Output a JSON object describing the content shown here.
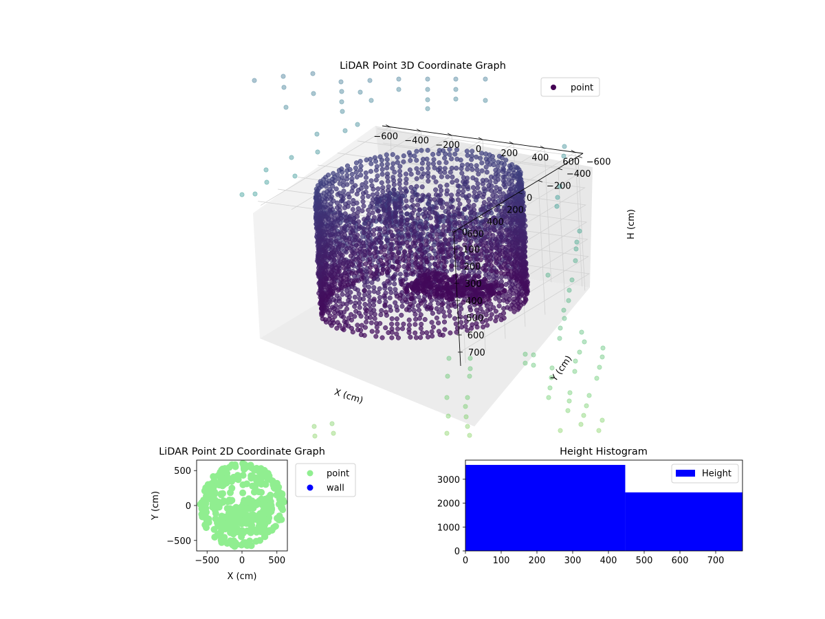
{
  "chart_data": [
    {
      "type": "scatter",
      "projection": "3d",
      "title": "LiDAR Point 3D Coordinate Graph",
      "xlabel": "X (cm)",
      "ylabel": "Y (cm)",
      "zlabel": "H (cm)",
      "xticks": [
        "−600",
        "−400",
        "−200",
        "0",
        "200",
        "400",
        "600"
      ],
      "yticks": [
        "600",
        "400",
        "200",
        "0",
        "−200",
        "−400",
        "−600"
      ],
      "zticks": [
        "0",
        "100",
        "200",
        "300",
        "400",
        "500",
        "600",
        "700"
      ],
      "xlim": [
        -650,
        650
      ],
      "ylim": [
        -650,
        650
      ],
      "zlim": [
        0,
        780
      ],
      "z_axis_inverted": true,
      "grid": true,
      "legend": {
        "position": "upper-right",
        "entries": [
          "point"
        ]
      },
      "colormap": "viridis",
      "series": [
        {
          "name": "point",
          "color": "#440154",
          "description_values": {
            "ring_radius_cm": 560,
            "height_range_cm": [
              0,
              750
            ]
          }
        }
      ]
    },
    {
      "type": "scatter",
      "title": "LiDAR Point 2D Coordinate Graph",
      "xlabel": "X (cm)",
      "ylabel": "Y (cm)",
      "xticks": [
        "−500",
        "0",
        "500"
      ],
      "yticks": [
        "500",
        "0",
        "−500"
      ],
      "xlim": [
        -650,
        650
      ],
      "ylim": [
        -650,
        650
      ],
      "legend": {
        "position": "outside-right",
        "entries": [
          "point",
          "wall"
        ]
      },
      "series": [
        {
          "name": "point",
          "color": "#90ee90"
        },
        {
          "name": "wall",
          "color": "#0000ff",
          "values": []
        }
      ]
    },
    {
      "type": "bar",
      "subtype": "histogram",
      "title": "Height Histogram",
      "xticks": [
        "0",
        "100",
        "200",
        "300",
        "400",
        "500",
        "600",
        "700"
      ],
      "yticks": [
        "0",
        "1000",
        "2000",
        "3000"
      ],
      "xlim": [
        0,
        775
      ],
      "ylim": [
        0,
        3800
      ],
      "bins": [
        {
          "x0": 0,
          "x1": 447,
          "count": 3600
        },
        {
          "x0": 447,
          "x1": 775,
          "count": 2450
        }
      ],
      "legend": {
        "position": "upper-right",
        "entries": [
          "Height"
        ]
      },
      "series": [
        {
          "name": "Height",
          "color": "#0000ff"
        }
      ]
    }
  ]
}
